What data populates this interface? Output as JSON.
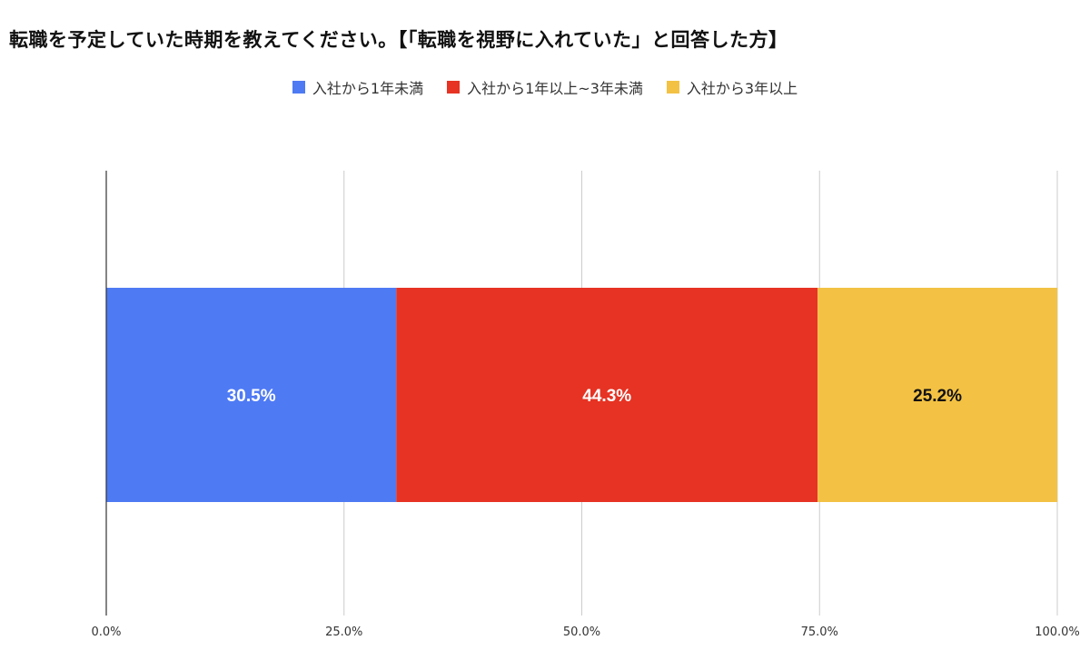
{
  "chart_data": {
    "type": "bar",
    "orientation": "horizontal",
    "stacked": true,
    "title": "転職を予定していた時期を教えてください。【「転職を視野に入れていた」と回答した方】",
    "xlabel": "",
    "ylabel": "",
    "xlim": [
      0,
      100
    ],
    "x_ticks": [
      "0.0%",
      "25.0%",
      "50.0%",
      "75.0%",
      "100.0%"
    ],
    "grid": true,
    "legend_position": "top",
    "series": [
      {
        "name": "入社から1年未満",
        "value": 30.5,
        "label": "30.5%",
        "color": "#4e7af4",
        "label_color": "#ffffff"
      },
      {
        "name": "入社から1年以上~3年未満",
        "value": 44.3,
        "label": "44.3%",
        "color": "#e63323",
        "label_color": "#ffffff"
      },
      {
        "name": "入社から3年以上",
        "value": 25.2,
        "label": "25.2%",
        "color": "#f3c244",
        "label_color": "#111111"
      }
    ]
  }
}
